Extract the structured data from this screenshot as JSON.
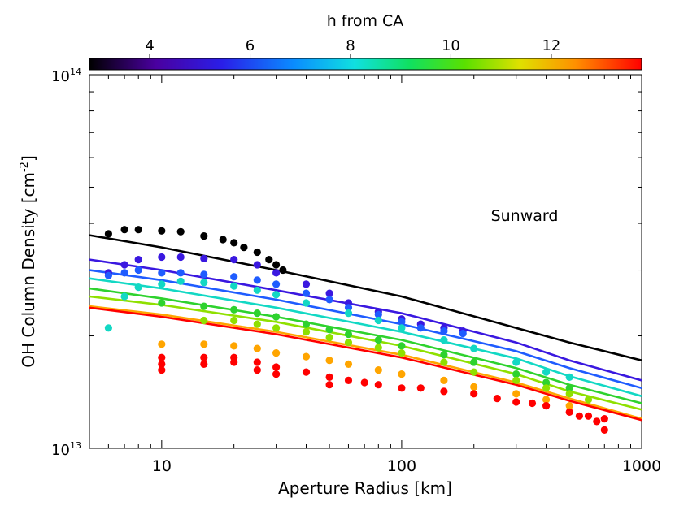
{
  "chart_data": {
    "type": "scatter",
    "title": "",
    "xlabel": "Aperture Radius [km]",
    "ylabel_main": "OH Column Density [cm",
    "ylabel_sup": "-2",
    "ylabel_end": "]",
    "annotation": "Sunward",
    "x_scale": "log",
    "y_scale": "log",
    "xlim": [
      5,
      1000
    ],
    "ylim": [
      10000000000000.0,
      100000000000000.0
    ],
    "x_ticks": [
      {
        "value": 10,
        "label": "10"
      },
      {
        "value": 100,
        "label": "100"
      },
      {
        "value": 1000,
        "label": "1000"
      }
    ],
    "y_tick_labels": [
      {
        "value": 100000000000000.0,
        "base": "10",
        "exp": "14"
      },
      {
        "value": 10000000000000.0,
        "base": "10",
        "exp": "13"
      }
    ],
    "colorbar": {
      "title": "h from CA",
      "range": [
        2.8,
        13.8
      ],
      "ticks": [
        {
          "value": 4,
          "label": "4"
        },
        {
          "value": 6,
          "label": "6"
        },
        {
          "value": 8,
          "label": "8"
        },
        {
          "value": 10,
          "label": "10"
        },
        {
          "value": 12,
          "label": "12"
        }
      ],
      "colormap": "rainbow (black-purple-blue-cyan-green-yellow-red)"
    },
    "series": [
      {
        "name": "h=3",
        "color": "#000000",
        "model_line": [
          [
            5,
            37200000000000.0
          ],
          [
            10,
            34500000000000.0
          ],
          [
            30,
            30000000000000.0
          ],
          [
            100,
            25500000000000.0
          ],
          [
            300,
            21000000000000.0
          ],
          [
            500,
            19200000000000.0
          ],
          [
            1000,
            17200000000000.0
          ]
        ],
        "x": [
          6,
          7,
          8,
          10,
          12,
          15,
          18,
          20,
          22,
          25,
          28,
          30,
          32
        ],
        "y": [
          37500000000000.0,
          38500000000000.0,
          38500000000000.0,
          38200000000000.0,
          38000000000000.0,
          37000000000000.0,
          36200000000000.0,
          35500000000000.0,
          34500000000000.0,
          33500000000000.0,
          32000000000000.0,
          31000000000000.0,
          30000000000000.0
        ]
      },
      {
        "name": "h=5",
        "color": "#3a18e0",
        "model_line": [
          [
            5,
            32000000000000.0
          ],
          [
            10,
            30000000000000.0
          ],
          [
            30,
            26500000000000.0
          ],
          [
            100,
            23000000000000.0
          ],
          [
            300,
            19200000000000.0
          ],
          [
            500,
            17200000000000.0
          ],
          [
            1000,
            15200000000000.0
          ]
        ],
        "x": [
          6,
          7,
          8,
          10,
          12,
          15,
          20,
          25,
          30,
          40,
          50,
          60,
          80,
          100,
          120,
          150,
          180
        ],
        "y": [
          29500000000000.0,
          31000000000000.0,
          32000000000000.0,
          32500000000000.0,
          32500000000000.0,
          32200000000000.0,
          32000000000000.0,
          31000000000000.0,
          29500000000000.0,
          27500000000000.0,
          26000000000000.0,
          24500000000000.0,
          23200000000000.0,
          22200000000000.0,
          21500000000000.0,
          21000000000000.0,
          20600000000000.0
        ]
      },
      {
        "name": "h=6",
        "color": "#1f5cff",
        "model_line": [
          [
            5,
            30000000000000.0
          ],
          [
            10,
            28200000000000.0
          ],
          [
            30,
            25000000000000.0
          ],
          [
            100,
            21500000000000.0
          ],
          [
            300,
            18200000000000.0
          ],
          [
            500,
            16400000000000.0
          ],
          [
            1000,
            14500000000000.0
          ]
        ],
        "x": [
          6,
          7,
          8,
          10,
          12,
          15,
          20,
          25,
          30,
          40,
          50,
          60,
          80,
          100,
          120,
          150,
          180
        ],
        "y": [
          29000000000000.0,
          29500000000000.0,
          30000000000000.0,
          29500000000000.0,
          29500000000000.0,
          29200000000000.0,
          28800000000000.0,
          28200000000000.0,
          27500000000000.0,
          26000000000000.0,
          25000000000000.0,
          23800000000000.0,
          22800000000000.0,
          21800000000000.0,
          21000000000000.0,
          20600000000000.0,
          20300000000000.0
        ]
      },
      {
        "name": "h=7",
        "color": "#12d8c4",
        "model_line": [
          [
            5,
            28500000000000.0
          ],
          [
            10,
            26800000000000.0
          ],
          [
            30,
            23800000000000.0
          ],
          [
            100,
            20500000000000.0
          ],
          [
            300,
            17400000000000.0
          ],
          [
            500,
            15600000000000.0
          ],
          [
            1000,
            13800000000000.0
          ]
        ],
        "x": [
          6,
          7,
          8,
          10,
          12,
          15,
          20,
          25,
          30,
          40,
          60,
          80,
          100,
          150,
          200,
          300,
          400,
          500
        ],
        "y": [
          21000000000000.0,
          25500000000000.0,
          27000000000000.0,
          27500000000000.0,
          28000000000000.0,
          27800000000000.0,
          27200000000000.0,
          26500000000000.0,
          25800000000000.0,
          24500000000000.0,
          23000000000000.0,
          22000000000000.0,
          21000000000000.0,
          19500000000000.0,
          18500000000000.0,
          17000000000000.0,
          16000000000000.0,
          15500000000000.0
        ]
      },
      {
        "name": "h=9",
        "color": "#2ed22e",
        "model_line": [
          [
            5,
            26800000000000.0
          ],
          [
            10,
            25200000000000.0
          ],
          [
            30,
            22500000000000.0
          ],
          [
            100,
            19500000000000.0
          ],
          [
            300,
            16400000000000.0
          ],
          [
            500,
            14800000000000.0
          ],
          [
            1000,
            13200000000000.0
          ]
        ],
        "x": [
          10,
          15,
          20,
          25,
          30,
          40,
          50,
          60,
          80,
          100,
          150,
          200,
          300,
          400,
          500
        ],
        "y": [
          24500000000000.0,
          24000000000000.0,
          23500000000000.0,
          23000000000000.0,
          22500000000000.0,
          21500000000000.0,
          20800000000000.0,
          20200000000000.0,
          19500000000000.0,
          18800000000000.0,
          17800000000000.0,
          17000000000000.0,
          15800000000000.0,
          15000000000000.0,
          14500000000000.0
        ]
      },
      {
        "name": "h=10.5",
        "color": "#8fe000",
        "model_line": [
          [
            5,
            25500000000000.0
          ],
          [
            10,
            24200000000000.0
          ],
          [
            30,
            21800000000000.0
          ],
          [
            100,
            18800000000000.0
          ],
          [
            300,
            15800000000000.0
          ],
          [
            500,
            14200000000000.0
          ],
          [
            1000,
            12700000000000.0
          ]
        ],
        "x": [
          15,
          20,
          25,
          30,
          40,
          50,
          60,
          80,
          100,
          150,
          200,
          300,
          400,
          500,
          600
        ],
        "y": [
          22000000000000.0,
          22000000000000.0,
          21500000000000.0,
          21000000000000.0,
          20500000000000.0,
          19800000000000.0,
          19200000000000.0,
          18600000000000.0,
          18000000000000.0,
          17000000000000.0,
          16000000000000.0,
          15200000000000.0,
          14500000000000.0,
          14000000000000.0,
          13500000000000.0
        ]
      },
      {
        "name": "h=11.5",
        "color": "#ffa500",
        "model_line": [
          [
            5,
            24000000000000.0
          ],
          [
            10,
            22800000000000.0
          ],
          [
            30,
            20500000000000.0
          ],
          [
            100,
            17800000000000.0
          ],
          [
            300,
            15000000000000.0
          ],
          [
            500,
            13600000000000.0
          ],
          [
            1000,
            12000000000000.0
          ]
        ],
        "x": [
          10,
          15,
          20,
          25,
          30,
          40,
          50,
          60,
          80,
          100,
          150,
          200,
          300,
          400,
          500
        ],
        "y": [
          19000000000000.0,
          19000000000000.0,
          18800000000000.0,
          18500000000000.0,
          18000000000000.0,
          17600000000000.0,
          17200000000000.0,
          16800000000000.0,
          16200000000000.0,
          15800000000000.0,
          15200000000000.0,
          14600000000000.0,
          14000000000000.0,
          13500000000000.0,
          13000000000000.0
        ]
      },
      {
        "name": "h=13",
        "color": "#ff0000",
        "model_line": [
          [
            5,
            23800000000000.0
          ],
          [
            10,
            22500000000000.0
          ],
          [
            30,
            20200000000000.0
          ],
          [
            100,
            17500000000000.0
          ],
          [
            300,
            14800000000000.0
          ],
          [
            500,
            13400000000000.0
          ],
          [
            1000,
            11900000000000.0
          ]
        ],
        "x": [
          10,
          10,
          10,
          15,
          15,
          20,
          20,
          25,
          25,
          30,
          30,
          40,
          50,
          50,
          60,
          70,
          80,
          100,
          120,
          150,
          200,
          250,
          300,
          350,
          400,
          500,
          550,
          600,
          650,
          700,
          700
        ],
        "y": [
          17500000000000.0,
          16800000000000.0,
          16200000000000.0,
          17500000000000.0,
          16800000000000.0,
          17500000000000.0,
          17000000000000.0,
          17000000000000.0,
          16200000000000.0,
          16500000000000.0,
          15800000000000.0,
          16000000000000.0,
          15500000000000.0,
          14800000000000.0,
          15200000000000.0,
          15000000000000.0,
          14800000000000.0,
          14500000000000.0,
          14500000000000.0,
          14200000000000.0,
          14000000000000.0,
          13600000000000.0,
          13300000000000.0,
          13200000000000.0,
          13000000000000.0,
          12500000000000.0,
          12200000000000.0,
          12200000000000.0,
          11800000000000.0,
          12000000000000.0,
          11200000000000.0
        ]
      }
    ]
  }
}
